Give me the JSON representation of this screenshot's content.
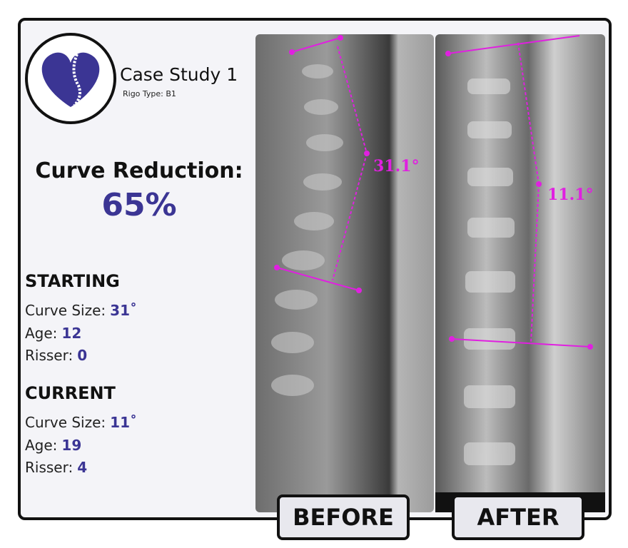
{
  "header": {
    "title": "Case Study 1",
    "subtitle": "Rigo Type: B1"
  },
  "result": {
    "label": "Curve Reduction:",
    "value": "65%"
  },
  "stats": [
    {
      "heading": "STARTING",
      "rows": [
        [
          "Curve Size:",
          "31˚"
        ],
        [
          "Age:",
          "12"
        ],
        [
          "Risser:",
          "0"
        ]
      ]
    },
    {
      "heading": "CURRENT",
      "rows": [
        [
          "Curve Size:",
          "11˚"
        ],
        [
          "Age:",
          "19"
        ],
        [
          "Risser:",
          "4"
        ]
      ]
    }
  ],
  "images": [
    {
      "angle": "31.1°",
      "button": "BEFORE"
    },
    {
      "angle": "11.1°",
      "button": "AFTER"
    }
  ]
}
